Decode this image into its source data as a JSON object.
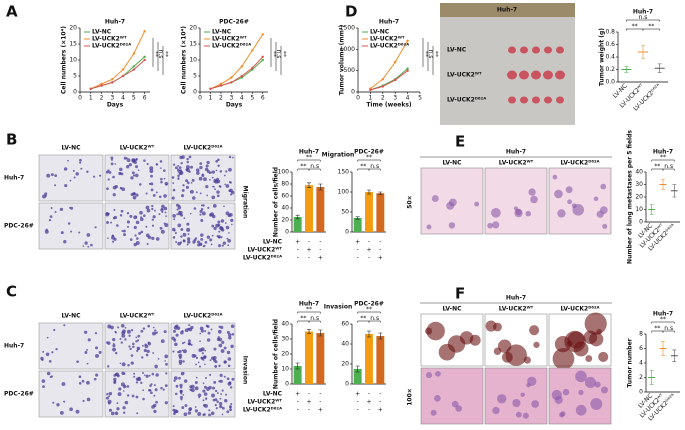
{
  "panel_labels": [
    "A",
    "B",
    "C",
    "D",
    "E",
    "F"
  ],
  "migration_images": {
    "columns": [
      "LV-NC",
      "LV-UCK2ᵂᵀ",
      "LV-UCK2ᴰ⁶²ᴬ"
    ],
    "rows": [
      "Huh-7",
      "PDC-26#"
    ],
    "side_label": "Migration"
  },
  "invasion_images": {
    "columns": [
      "LV-NC",
      "LV-UCK2ᵂᵀ",
      "LV-UCK2ᴰ⁶²ᴬ"
    ],
    "rows": [
      "Huh-7",
      "PDC-26#"
    ],
    "side_label": "Invasion"
  },
  "tumor_photo": {
    "title": "Huh-7",
    "rows": [
      "LV-NC",
      "LV-UCK2ᵂᵀ",
      "LV-UCK2ᴰ⁶²ᴬ"
    ]
  },
  "lung_images": {
    "title": "Huh-7",
    "columns": [
      "LV-NC",
      "LV-UCK2ᵂᵀ",
      "LV-UCK2ᴰ⁶²ᴬ"
    ],
    "magnification": "50×"
  },
  "liver_images": {
    "title": "Huh-7",
    "columns": [
      "LV-NC",
      "LV-UCK2ᵂᵀ",
      "LV-UCK2ᴰ⁶²ᴬ"
    ],
    "magnification": "100×"
  },
  "migration_conditions": {
    "title": "Migration",
    "rows": [
      {
        "label": "LV-NC",
        "marks": [
          "+",
          "-",
          "-",
          "+",
          "-",
          "-"
        ]
      },
      {
        "label": "LV-UCK2ᵂᵀ",
        "marks": [
          "-",
          "+",
          "-",
          "-",
          "+",
          "-"
        ]
      },
      {
        "label": "LV-UCK2ᴰ⁶²ᴬ",
        "marks": [
          "-",
          "-",
          "+",
          "-",
          "-",
          "+"
        ]
      }
    ]
  },
  "invasion_conditions": {
    "title": "Invasion",
    "rows": [
      {
        "label": "LV-NC",
        "marks": [
          "+",
          "-",
          "-",
          "+",
          "-",
          "-"
        ]
      },
      {
        "label": "LV-UCK2ᵂᵀ",
        "marks": [
          "-",
          "+",
          "-",
          "-",
          "+",
          "-"
        ]
      },
      {
        "label": "LV-UCK2ᴰ⁶²ᴬ",
        "marks": [
          "-",
          "-",
          "+",
          "-",
          "-",
          "+"
        ]
      }
    ]
  },
  "chart_data": [
    {
      "type": "line",
      "title": "Huh-7",
      "x_label": "Days",
      "y_label": "Cell numbers (×10⁴)",
      "x": [
        1,
        2,
        3,
        4,
        5,
        6
      ],
      "xlim": [
        0,
        6.5
      ],
      "xticks": [
        0,
        1,
        2,
        3,
        4,
        5,
        6
      ],
      "ylim": [
        0,
        20
      ],
      "yticks": [
        0,
        5,
        10,
        15,
        20
      ],
      "series": [
        {
          "name": "LV-NC",
          "color": "#4cae4c",
          "values": [
            1,
            2,
            3,
            5,
            8,
            11
          ]
        },
        {
          "name": "LV-UCK2ᵂᵀ",
          "color": "#f28c28",
          "values": [
            1,
            2.5,
            4,
            7,
            12,
            19
          ]
        },
        {
          "name": "LV-UCK2ᴰ⁶²ᴬ",
          "color": "#d9534f",
          "values": [
            1,
            2,
            3,
            5,
            7,
            10
          ]
        }
      ],
      "annotations": [
        "**",
        "n.s",
        "**"
      ]
    },
    {
      "type": "line",
      "title": "PDC-26#",
      "x_label": "Days",
      "y_label": "Cell numbers (×10⁴)",
      "x": [
        1,
        2,
        3,
        4,
        5,
        6
      ],
      "xlim": [
        0,
        6.5
      ],
      "xticks": [
        0,
        1,
        2,
        3,
        4,
        5,
        6
      ],
      "ylim": [
        0,
        20
      ],
      "yticks": [
        0,
        5,
        10,
        15,
        20
      ],
      "series": [
        {
          "name": "LV-NC",
          "color": "#4cae4c",
          "values": [
            1,
            2,
            3,
            4.5,
            7,
            10
          ]
        },
        {
          "name": "LV-UCK2ᵂᵀ",
          "color": "#f28c28",
          "values": [
            1,
            2.5,
            4.5,
            8,
            13,
            18
          ]
        },
        {
          "name": "LV-UCK2ᴰ⁶²ᴬ",
          "color": "#d9534f",
          "values": [
            1,
            2,
            3,
            5,
            7.5,
            11
          ]
        }
      ],
      "annotations": [
        "**",
        "n.s",
        "**"
      ]
    },
    {
      "type": "line",
      "title": "Huh-7",
      "x_label": "Time (weeks)",
      "y_label": "Tumor volume (mm³)",
      "x": [
        1,
        2,
        3,
        4
      ],
      "xlim": [
        0,
        5
      ],
      "xticks": [
        0,
        1,
        2,
        3,
        4,
        5
      ],
      "ylim": [
        0,
        1500
      ],
      "yticks": [
        0,
        500,
        1000,
        1500
      ],
      "series": [
        {
          "name": "LV-NC",
          "color": "#4cae4c",
          "values": [
            50,
            150,
            300,
            550
          ]
        },
        {
          "name": "LV-UCK2ᵂᵀ",
          "color": "#f28c28",
          "values": [
            80,
            300,
            700,
            1200
          ]
        },
        {
          "name": "LV-UCK2ᴰ⁶²ᴬ",
          "color": "#d9534f",
          "values": [
            50,
            130,
            280,
            500
          ]
        }
      ],
      "annotations": [
        "**",
        "n.s",
        "**"
      ]
    },
    {
      "type": "dot",
      "title": "Huh-7",
      "y_label": "Tumor weight (g)",
      "categories": [
        "LV-NC",
        "LV-UCK2ᵂᵀ",
        "LV-UCK2ᴰ⁶²ᴬ"
      ],
      "values": [
        0.2,
        0.48,
        0.22
      ],
      "errors": [
        0.05,
        0.1,
        0.07
      ],
      "colors": [
        "#4cae4c",
        "#f28c28",
        "#555555"
      ],
      "ylim": [
        0,
        0.8
      ],
      "yticks": [
        {
          "value": 0,
          "label": "0.0"
        },
        0.2,
        0.4,
        0.6,
        0.8
      ],
      "annotations": [
        "**",
        "**",
        "n.s"
      ]
    },
    {
      "type": "bar",
      "title": "Huh-7",
      "y_label": "Number of cells/field",
      "values": [
        25,
        78,
        75
      ],
      "errors": [
        3,
        4,
        5
      ],
      "colors": [
        "#4caf50",
        "#f39c12",
        "#d2691e"
      ],
      "ylim": [
        0,
        100
      ],
      "yticks": [
        0,
        20,
        40,
        60,
        80,
        100
      ],
      "annotations": [
        "**",
        "n.s",
        "**"
      ]
    },
    {
      "type": "bar",
      "title": "PDC-26#",
      "values": [
        35,
        100,
        97
      ],
      "errors": [
        3,
        5,
        3
      ],
      "colors": [
        "#4caf50",
        "#f39c12",
        "#d2691e"
      ],
      "ylim": [
        0,
        150
      ],
      "yticks": [
        0,
        50,
        100,
        150
      ],
      "annotations": [
        "**",
        "n.s",
        "**"
      ]
    },
    {
      "type": "bar",
      "title": "Huh-7",
      "y_label": "Number of cells/field",
      "values": [
        12,
        35,
        34
      ],
      "errors": [
        2,
        1.5,
        2
      ],
      "colors": [
        "#4caf50",
        "#f39c12",
        "#d2691e"
      ],
      "ylim": [
        0,
        40
      ],
      "yticks": [
        0,
        10,
        20,
        30,
        40
      ],
      "annotations": [
        "**",
        "n.s",
        "**"
      ]
    },
    {
      "type": "bar",
      "title": "PDC-26#",
      "values": [
        15,
        50,
        48
      ],
      "errors": [
        3,
        3,
        3
      ],
      "colors": [
        "#4caf50",
        "#f39c12",
        "#d2691e"
      ],
      "ylim": [
        0,
        60
      ],
      "yticks": [
        0,
        20,
        40,
        60
      ],
      "annotations": [
        "**",
        "n.s",
        "**"
      ]
    },
    {
      "type": "dot",
      "title": "Huh-7",
      "y_label": "Number of lung metastases per 5 fields",
      "categories": [
        "LV-NC",
        "LV-UCK2ᵂᵀ",
        "LV-UCK2ᴰ⁶²ᴬ"
      ],
      "values": [
        10,
        30,
        25
      ],
      "errors": [
        4,
        4,
        5
      ],
      "colors": [
        "#4cae4c",
        "#f28c28",
        "#555555"
      ],
      "ylim": [
        0,
        40
      ],
      "yticks": [
        0,
        10,
        20,
        30,
        40
      ],
      "annotations": [
        "**",
        "n.s",
        "**"
      ]
    },
    {
      "type": "dot",
      "title": "Huh-7",
      "y_label": "Tumor number",
      "categories": [
        "LV-NC",
        "LV-UCK2ᵂᵀ",
        "LV-UCK2ᴰ⁶²ᴬ"
      ],
      "values": [
        2,
        6,
        5
      ],
      "errors": [
        1,
        1,
        0.8
      ],
      "colors": [
        "#4cae4c",
        "#f28c28",
        "#555555"
      ],
      "ylim": [
        0,
        8
      ],
      "yticks": [
        0,
        2,
        4,
        6,
        8
      ],
      "annotations": [
        "**",
        "n.s",
        "**"
      ]
    }
  ]
}
